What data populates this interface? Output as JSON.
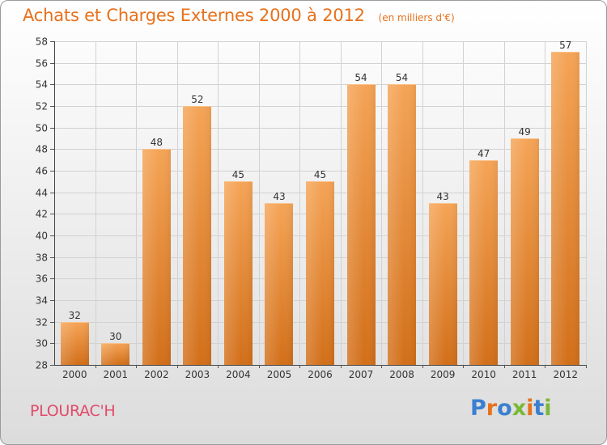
{
  "title": "Achats et Charges Externes 2000 à 2012",
  "subtitle": "(en milliers d'€)",
  "location": "PLOURAC'H",
  "brand": {
    "letters": [
      "P",
      "r",
      "o",
      "x",
      "i",
      "t",
      "i"
    ],
    "colors": [
      "#3b7fd0",
      "#e8711c",
      "#3b7fd0",
      "#7bb837",
      "#e8711c",
      "#3b7fd0",
      "#7bb837"
    ]
  },
  "colors": {
    "bar_top": "#f5a456",
    "bar_bottom": "#d26f19",
    "title": "#e8711c",
    "location": "#e24a69"
  },
  "chart_data": {
    "type": "bar",
    "title": "Achats et Charges Externes 2000 à 2012",
    "subtitle": "(en milliers d'€)",
    "categories": [
      "2000",
      "2001",
      "2002",
      "2003",
      "2004",
      "2005",
      "2006",
      "2007",
      "2008",
      "2009",
      "2010",
      "2011",
      "2012"
    ],
    "values": [
      32,
      30,
      48,
      52,
      45,
      43,
      45,
      54,
      54,
      43,
      47,
      49,
      57
    ],
    "data_labels": [
      "32",
      "30",
      "48",
      "52",
      "45",
      "43",
      "45",
      "54",
      "54",
      "43",
      "47",
      "49",
      "57"
    ],
    "ylim": [
      28,
      58
    ],
    "yticks": [
      28,
      30,
      32,
      34,
      36,
      38,
      40,
      42,
      44,
      46,
      48,
      50,
      52,
      54,
      56,
      58
    ],
    "grid": true,
    "legend": "none"
  }
}
